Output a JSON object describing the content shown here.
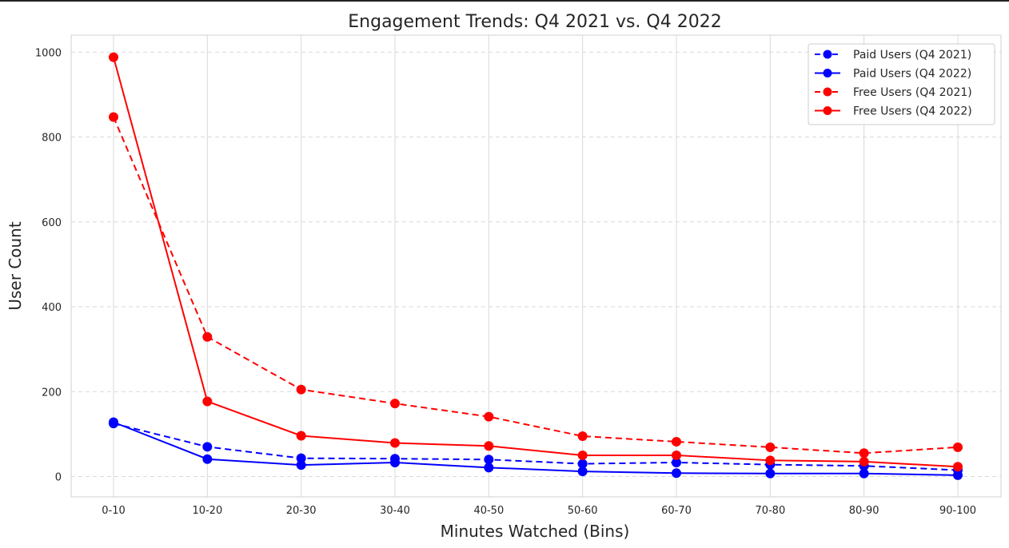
{
  "chart_data": {
    "type": "line",
    "title": "Engagement Trends: Q4 2021 vs. Q4 2022",
    "xlabel": "Minutes Watched (Bins)",
    "ylabel": "User Count",
    "categories": [
      "0-10",
      "10-20",
      "20-30",
      "30-40",
      "40-50",
      "50-60",
      "60-70",
      "70-80",
      "80-90",
      "90-100"
    ],
    "ylim": [
      -48,
      1040
    ],
    "yticks": [
      0,
      200,
      400,
      600,
      800,
      1000
    ],
    "grid": true,
    "legend_position": "top-right",
    "series": [
      {
        "name": "Paid Users (Q4 2021)",
        "color": "#0000ff",
        "dashed": true,
        "values": [
          125,
          70,
          43,
          42,
          40,
          30,
          33,
          28,
          25,
          15
        ]
      },
      {
        "name": "Paid Users (Q4 2022)",
        "color": "#0000ff",
        "dashed": false,
        "values": [
          128,
          41,
          27,
          33,
          21,
          12,
          8,
          7,
          7,
          3
        ]
      },
      {
        "name": "Free Users (Q4 2021)",
        "color": "#ff0000",
        "dashed": true,
        "values": [
          847,
          329,
          205,
          172,
          141,
          95,
          82,
          69,
          55,
          69
        ]
      },
      {
        "name": "Free Users (Q4 2022)",
        "color": "#ff0000",
        "dashed": false,
        "values": [
          988,
          177,
          96,
          79,
          72,
          50,
          50,
          38,
          35,
          23
        ]
      }
    ]
  }
}
